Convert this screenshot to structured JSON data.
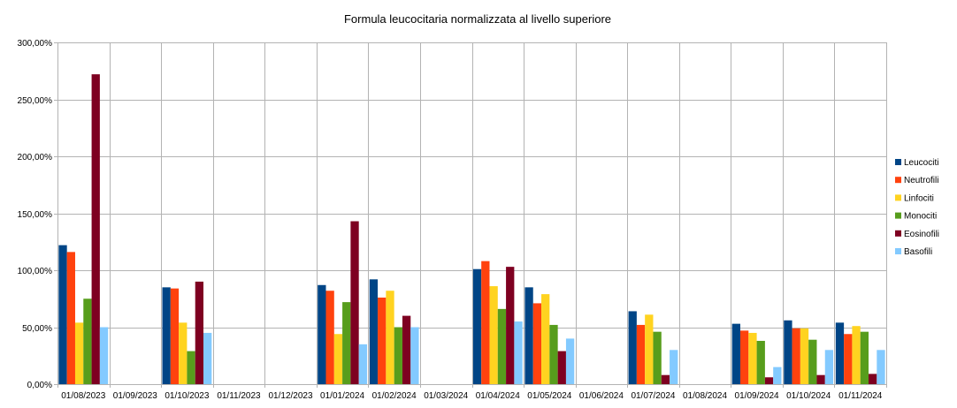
{
  "chart_data": {
    "type": "bar",
    "title": "Formula leucocitaria normalizzata al livello superiore",
    "xlabel": "",
    "ylabel": "",
    "ylim": [
      0,
      300
    ],
    "y_tick_labels": [
      "0,00%",
      "50,00%",
      "100,00%",
      "150,00%",
      "200,00%",
      "250,00%",
      "300,00%"
    ],
    "y_tick_values": [
      0,
      50,
      100,
      150,
      200,
      250,
      300
    ],
    "grid": true,
    "legend_position": "right",
    "categories": [
      "01/08/2023",
      "01/09/2023",
      "01/10/2023",
      "01/11/2023",
      "01/12/2023",
      "01/01/2024",
      "01/02/2024",
      "01/03/2024",
      "01/04/2024",
      "01/05/2024",
      "01/06/2024",
      "01/07/2024",
      "01/08/2024",
      "01/09/2024",
      "01/10/2024",
      "01/11/2024"
    ],
    "series": [
      {
        "name": "Leucociti",
        "color": "#004586",
        "values": [
          122,
          null,
          85,
          null,
          null,
          87,
          92,
          null,
          101,
          85,
          null,
          64,
          null,
          53,
          56,
          54
        ]
      },
      {
        "name": "Neutrofili",
        "color": "#ff420e",
        "values": [
          116,
          null,
          84,
          null,
          null,
          82,
          76,
          null,
          108,
          71,
          null,
          52,
          null,
          47,
          49,
          44
        ]
      },
      {
        "name": "Linfociti",
        "color": "#ffd320",
        "values": [
          54,
          null,
          54,
          null,
          null,
          44,
          82,
          null,
          86,
          79,
          null,
          61,
          null,
          45,
          49,
          51
        ]
      },
      {
        "name": "Monociti",
        "color": "#579d1c",
        "values": [
          75,
          null,
          29,
          null,
          null,
          72,
          50,
          null,
          66,
          52,
          null,
          46,
          null,
          38,
          39,
          46
        ]
      },
      {
        "name": "Eosinofili",
        "color": "#7e0021",
        "values": [
          272,
          null,
          90,
          null,
          null,
          143,
          60,
          null,
          103,
          29,
          null,
          8,
          null,
          6,
          8,
          9
        ]
      },
      {
        "name": "Basofili",
        "color": "#83caff",
        "values": [
          50,
          null,
          45,
          null,
          null,
          35,
          50,
          null,
          55,
          40,
          null,
          30,
          null,
          15,
          30,
          30
        ]
      }
    ]
  }
}
